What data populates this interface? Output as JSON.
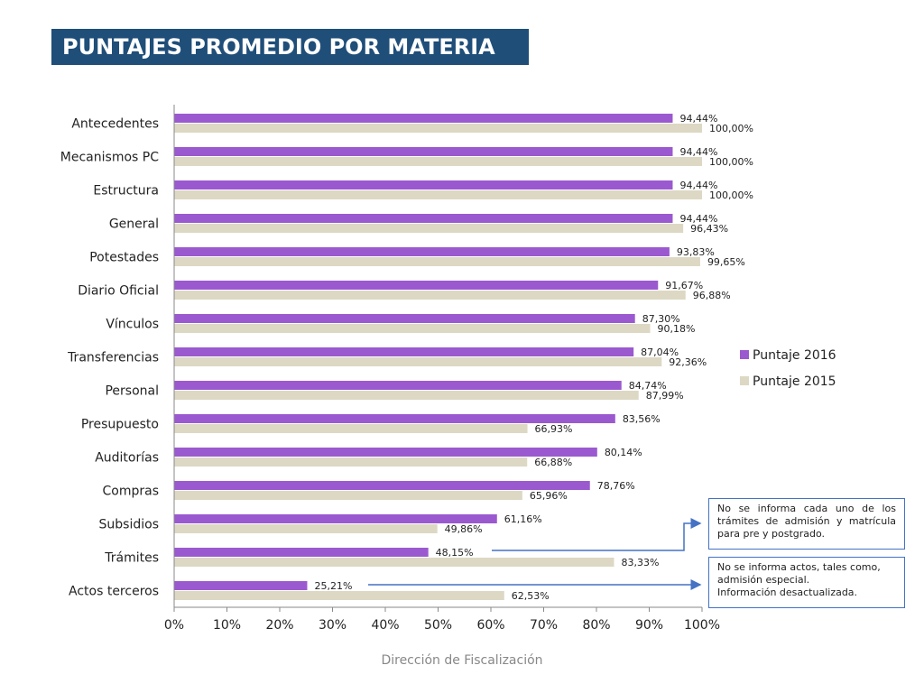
{
  "page": {
    "title": "PUNTAJES PROMEDIO POR MATERIA",
    "footer": "Dirección de Fiscalización",
    "notes": [
      "No se informa cada uno de los trámites de admisión y matrícula para pre y postgrado.",
      "No se informa actos, tales como, admisión especial.\nInformación desactualizada."
    ]
  },
  "chart_data": {
    "type": "bar",
    "orientation": "horizontal",
    "categories": [
      "Antecedentes",
      "Mecanismos PC",
      "Estructura",
      "General",
      "Potestades",
      "Diario Oficial",
      "Vínculos",
      "Transferencias",
      "Personal",
      "Presupuesto",
      "Auditorías",
      "Compras",
      "Subsidios",
      "Trámites",
      "Actos terceros"
    ],
    "series": [
      {
        "name": "Puntaje 2016",
        "color": "#9b59d0",
        "values": [
          94.44,
          94.44,
          94.44,
          94.44,
          93.83,
          91.67,
          87.3,
          87.04,
          84.74,
          83.56,
          80.14,
          78.76,
          61.16,
          48.15,
          25.21
        ],
        "labels": [
          "94,44%",
          "94,44%",
          "94,44%",
          "94,44%",
          "93,83%",
          "91,67%",
          "87,30%",
          "87,04%",
          "84,74%",
          "83,56%",
          "80,14%",
          "78,76%",
          "61,16%",
          "48,15%",
          "25,21%"
        ]
      },
      {
        "name": "Puntaje 2015",
        "color": "#ddd8c4",
        "values": [
          100.0,
          100.0,
          100.0,
          96.43,
          99.65,
          96.88,
          90.18,
          92.36,
          87.99,
          66.93,
          66.88,
          65.96,
          49.86,
          83.33,
          62.53
        ],
        "labels": [
          "100,00%",
          "100,00%",
          "100,00%",
          "96,43%",
          "99,65%",
          "96,88%",
          "90,18%",
          "92,36%",
          "87,99%",
          "66,93%",
          "66,88%",
          "65,96%",
          "49,86%",
          "83,33%",
          "62,53%"
        ]
      }
    ],
    "xlim": [
      0,
      100
    ],
    "xticks": [
      "0%",
      "10%",
      "20%",
      "30%",
      "40%",
      "50%",
      "60%",
      "70%",
      "80%",
      "90%",
      "100%"
    ],
    "grid": false,
    "legend_position": "right"
  }
}
